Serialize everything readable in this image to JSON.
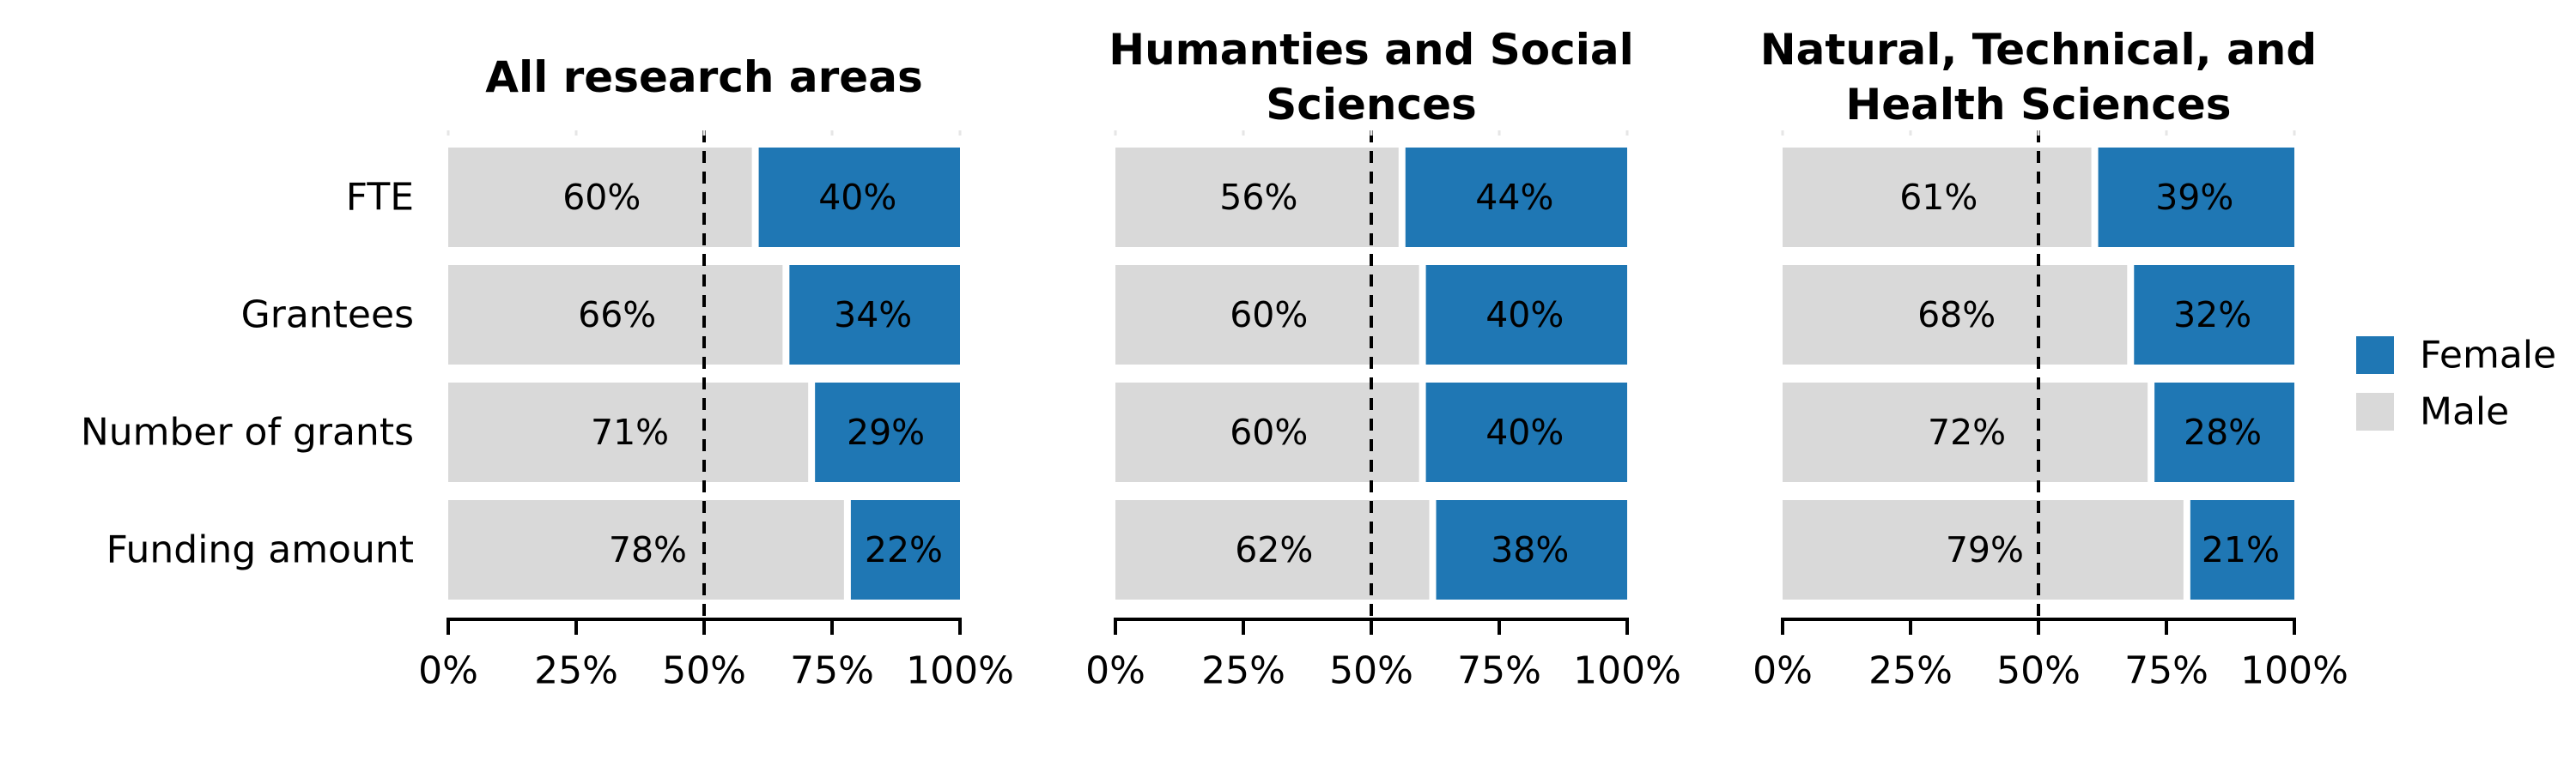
{
  "chart_data": {
    "type": "bar",
    "orientation": "horizontal",
    "stacked": true,
    "categories": [
      "FTE",
      "Grantees",
      "Number of grants",
      "Funding amount"
    ],
    "xlim": [
      0,
      100
    ],
    "xticks": [
      "0%",
      "25%",
      "50%",
      "75%",
      "100%"
    ],
    "reference_line": 50,
    "panels": [
      {
        "title": [
          "All research areas"
        ],
        "series": [
          {
            "name": "Male",
            "values": [
              60,
              66,
              71,
              78
            ],
            "labels": [
              "60%",
              "66%",
              "71%",
              "78%"
            ]
          },
          {
            "name": "Female",
            "values": [
              40,
              34,
              29,
              22
            ],
            "labels": [
              "40%",
              "34%",
              "29%",
              "22%"
            ]
          }
        ]
      },
      {
        "title": [
          "Humanties and Social",
          "Sciences"
        ],
        "series": [
          {
            "name": "Male",
            "values": [
              56,
              60,
              60,
              62
            ],
            "labels": [
              "56%",
              "60%",
              "60%",
              "62%"
            ]
          },
          {
            "name": "Female",
            "values": [
              44,
              40,
              40,
              38
            ],
            "labels": [
              "44%",
              "40%",
              "40%",
              "38%"
            ]
          }
        ]
      },
      {
        "title": [
          "Natural, Technical, and",
          "Health Sciences"
        ],
        "series": [
          {
            "name": "Male",
            "values": [
              61,
              68,
              72,
              79
            ],
            "labels": [
              "61%",
              "68%",
              "72%",
              "79%"
            ]
          },
          {
            "name": "Female",
            "values": [
              39,
              32,
              28,
              21
            ],
            "labels": [
              "39%",
              "32%",
              "28%",
              "21%"
            ]
          }
        ]
      }
    ],
    "legend": {
      "placement": "right",
      "entries": [
        {
          "name": "Female",
          "color": "#1f77b4"
        },
        {
          "name": "Male",
          "color": "#d9d9d9"
        }
      ]
    },
    "colors": {
      "Male": "#d9d9d9",
      "Female": "#1f77b4"
    },
    "grid": false
  }
}
